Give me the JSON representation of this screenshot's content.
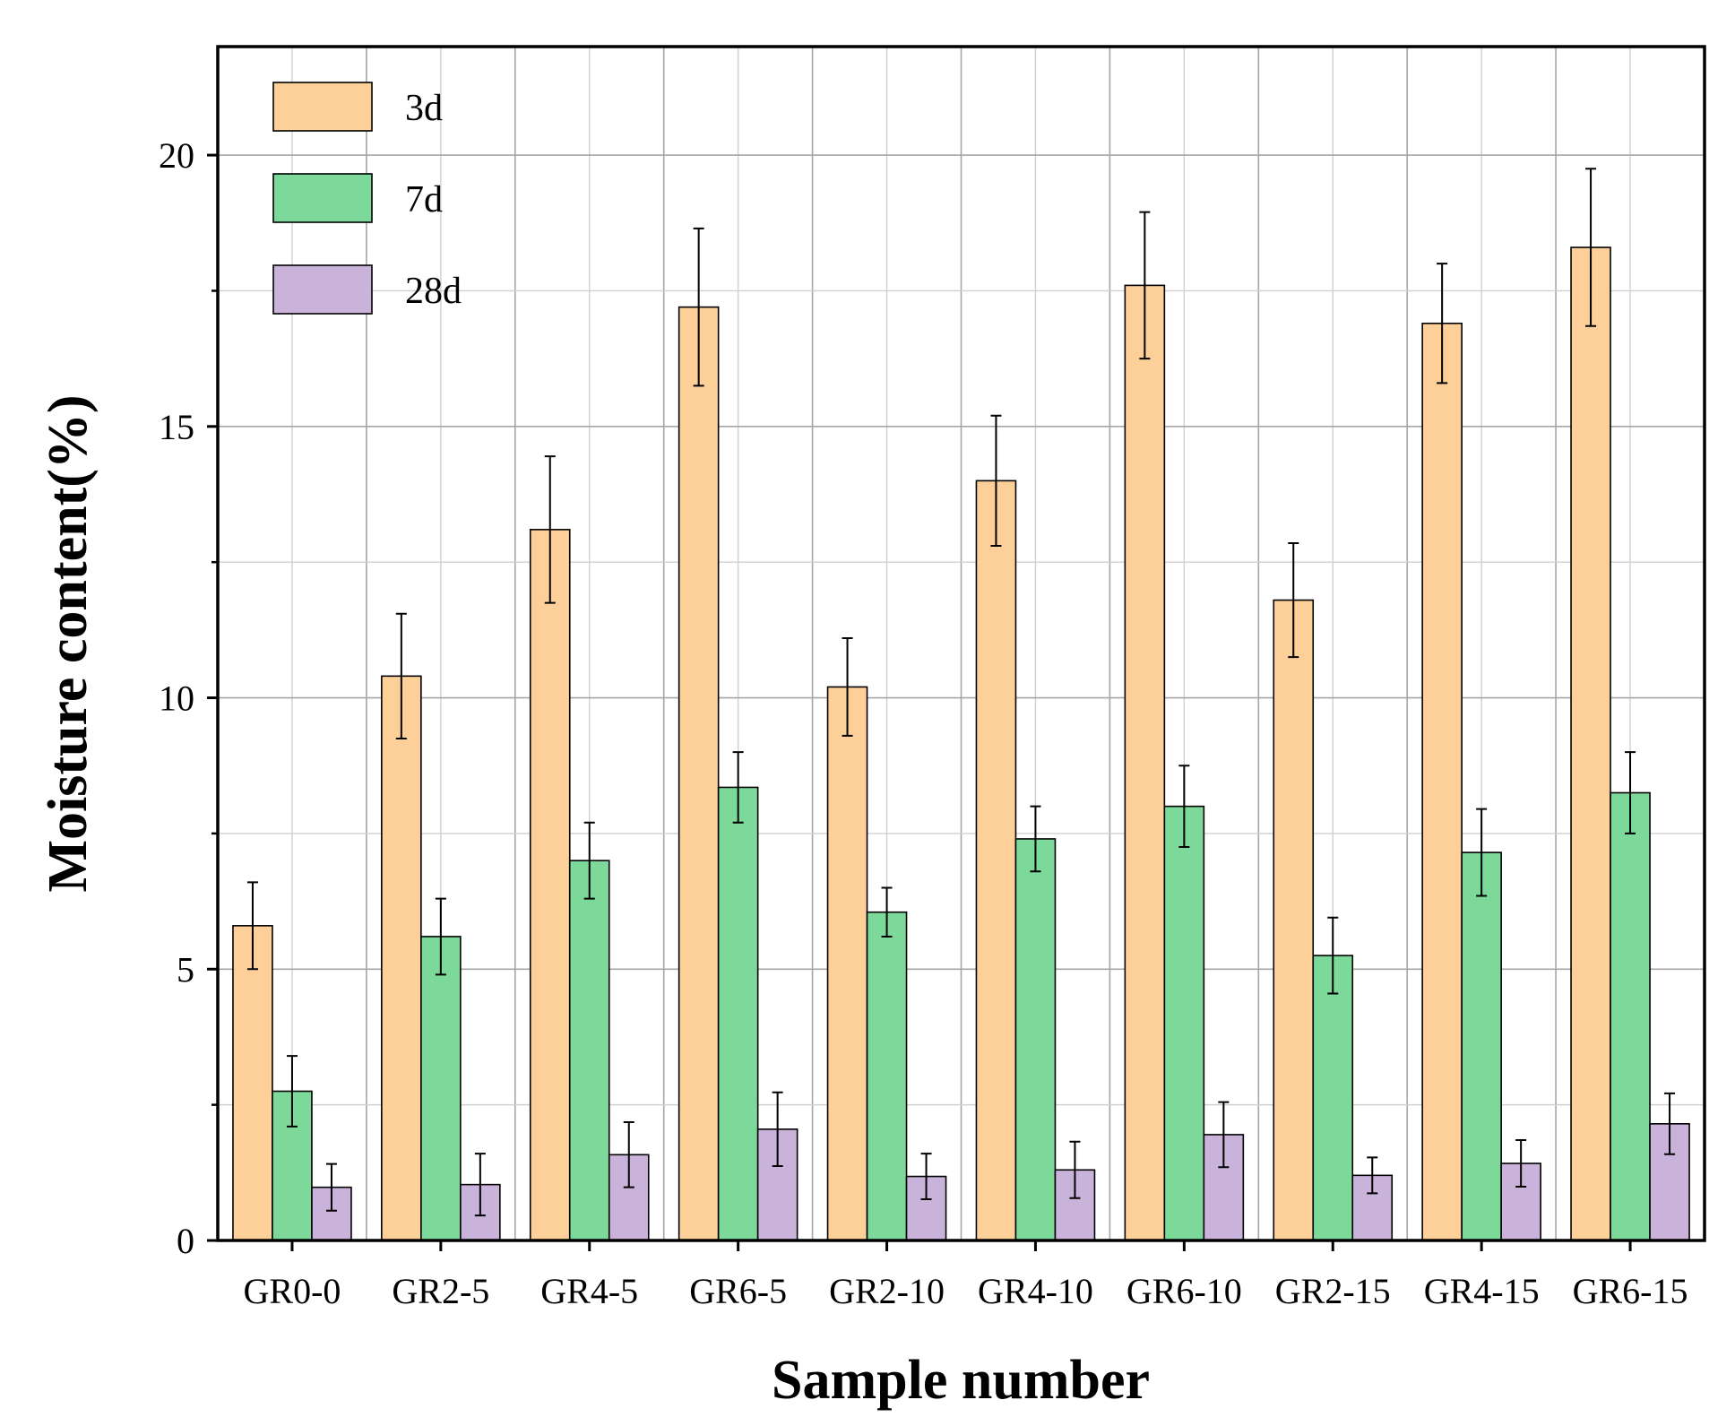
{
  "chart_data": {
    "type": "bar",
    "title": "",
    "xlabel": "Sample number",
    "ylabel": "Moisture content(%)",
    "ylim": [
      0,
      22
    ],
    "yticks": [
      0,
      5,
      10,
      15,
      20
    ],
    "grid": true,
    "legend_position": "top-left",
    "categories": [
      "GR0-0",
      "GR2-5",
      "GR4-5",
      "GR6-5",
      "GR2-10",
      "GR4-10",
      "GR6-10",
      "GR2-15",
      "GR4-15",
      "GR6-15"
    ],
    "series": [
      {
        "name": "3d",
        "color": "#FDD09A",
        "values": [
          5.8,
          10.4,
          13.1,
          17.2,
          10.2,
          14.0,
          17.6,
          11.8,
          16.9,
          18.3
        ],
        "errors": [
          0.8,
          1.15,
          1.35,
          1.45,
          0.9,
          1.2,
          1.35,
          1.05,
          1.1,
          1.45
        ]
      },
      {
        "name": "7d",
        "color": "#7DD99A",
        "values": [
          2.75,
          5.6,
          7.0,
          8.35,
          6.05,
          7.4,
          8.0,
          5.25,
          7.15,
          8.25
        ],
        "errors": [
          0.65,
          0.7,
          0.7,
          0.65,
          0.45,
          0.6,
          0.75,
          0.7,
          0.8,
          0.75
        ]
      },
      {
        "name": "28d",
        "color": "#C9B3DB",
        "values": [
          0.98,
          1.03,
          1.58,
          2.05,
          1.18,
          1.3,
          1.95,
          1.2,
          1.42,
          2.15
        ],
        "errors": [
          0.43,
          0.57,
          0.6,
          0.68,
          0.42,
          0.52,
          0.6,
          0.33,
          0.43,
          0.56
        ]
      }
    ]
  }
}
